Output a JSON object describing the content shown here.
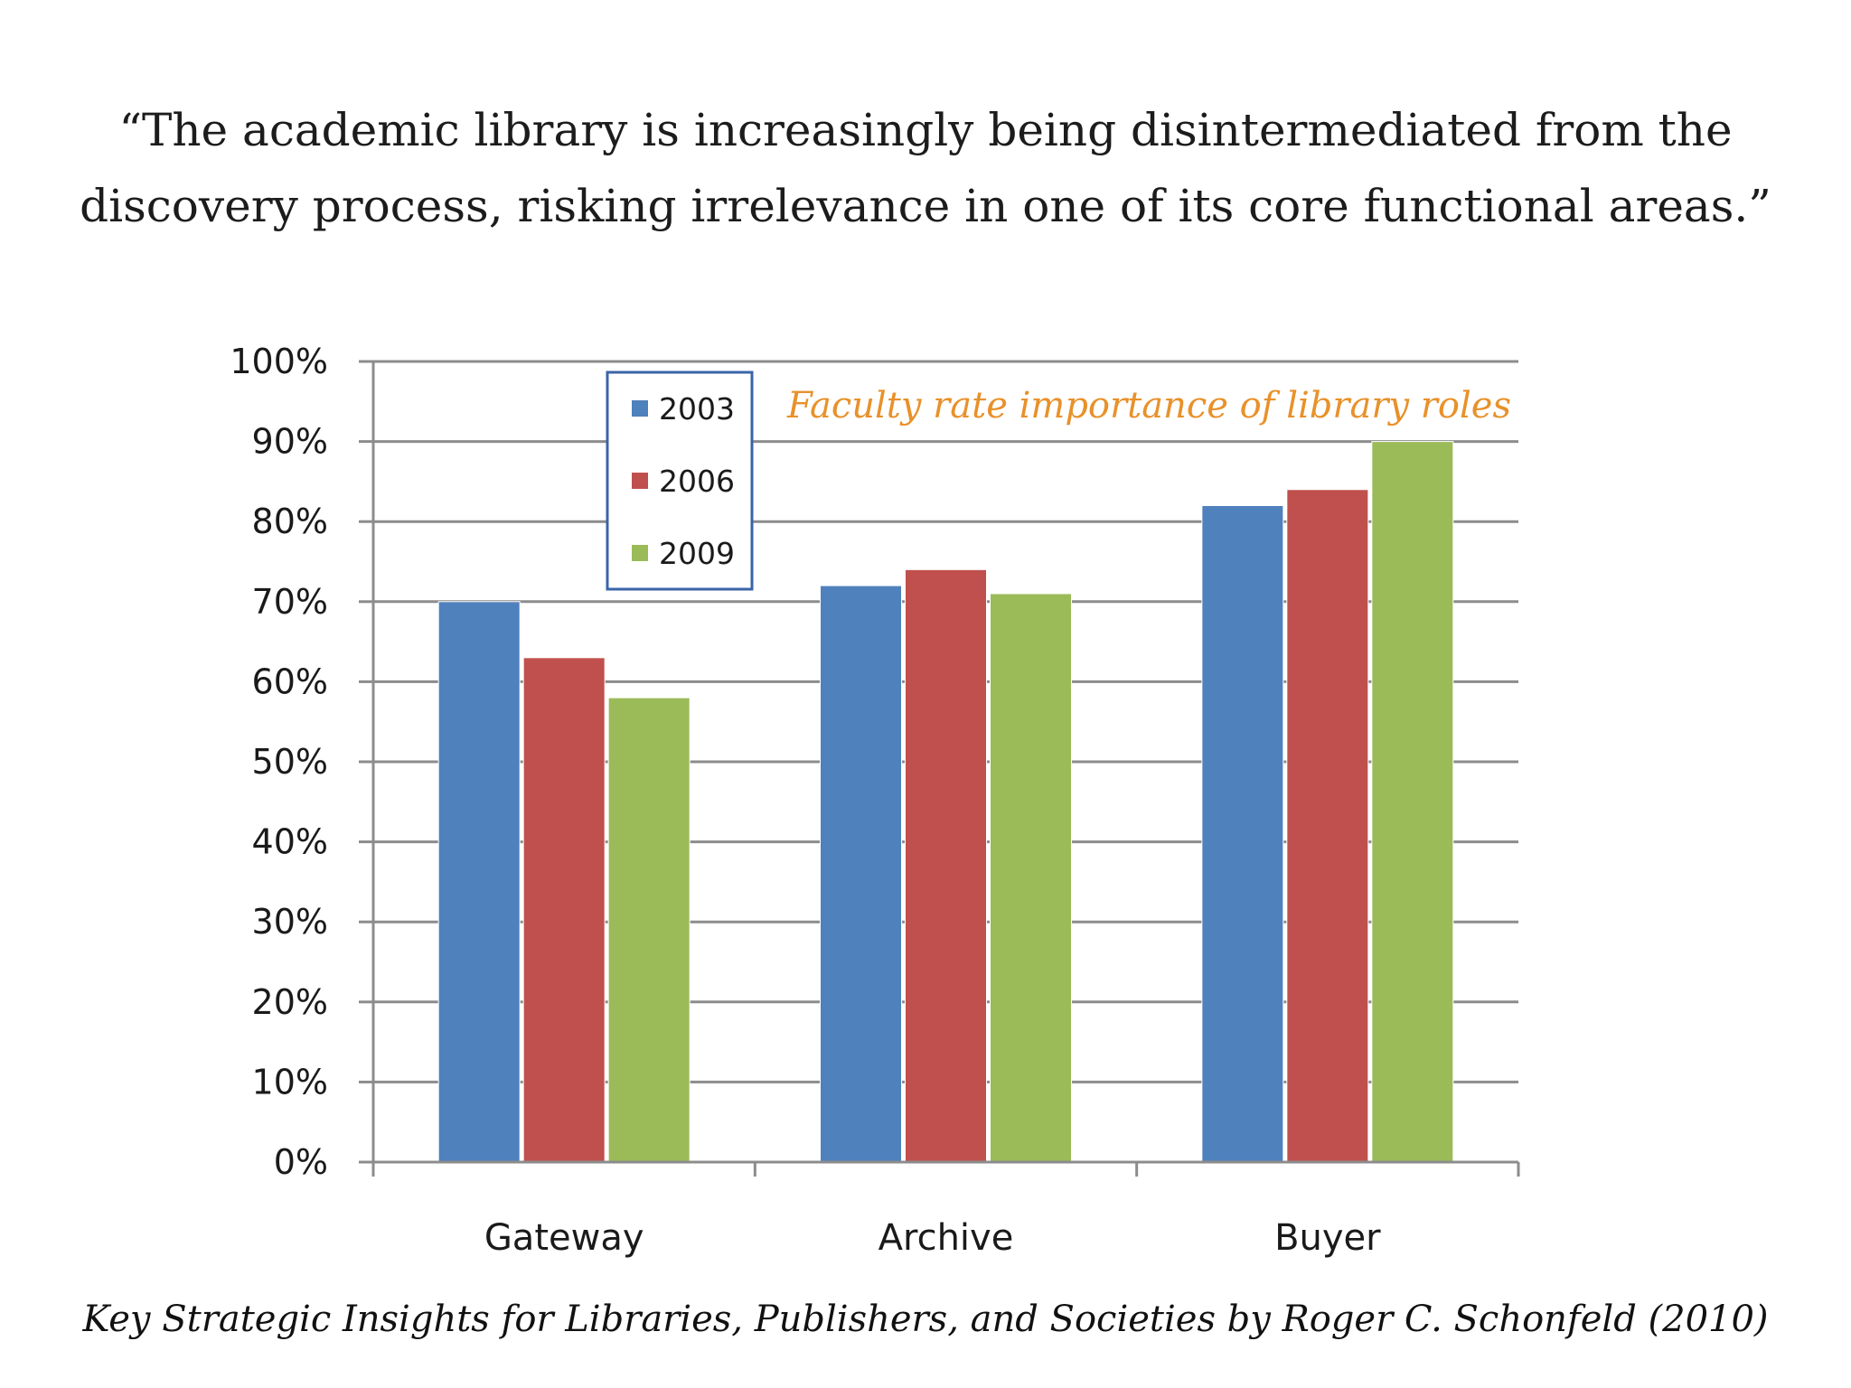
{
  "quote": {
    "line1": "“The academic library is increasingly being disintermediated from the",
    "line2": "discovery process, risking irrelevance in one of its core functional areas.”"
  },
  "caption": "Key Strategic Insights for Libraries, Publishers, and Societies by Roger C. Schonfeld (2010)",
  "chart_data": {
    "type": "bar",
    "annotation": "Faculty rate importance of library roles",
    "annotation_color": "#E8912A",
    "categories": [
      "Gateway",
      "Archive",
      "Buyer"
    ],
    "series": [
      {
        "name": "2003",
        "color": "#4F81BD",
        "values": [
          70,
          72,
          82
        ]
      },
      {
        "name": "2006",
        "color": "#C0504D",
        "values": [
          63,
          74,
          84
        ]
      },
      {
        "name": "2009",
        "color": "#9BBB59",
        "values": [
          58,
          71,
          90
        ]
      }
    ],
    "ylim": [
      0,
      100
    ],
    "yticks": [
      0,
      10,
      20,
      30,
      40,
      50,
      60,
      70,
      80,
      90,
      100
    ],
    "ytick_labels": [
      "0%",
      "10%",
      "20%",
      "30%",
      "40%",
      "50%",
      "60%",
      "70%",
      "80%",
      "90%",
      "100%"
    ],
    "grid": true,
    "legend_position": "top-left",
    "xlabel": "",
    "ylabel": ""
  }
}
